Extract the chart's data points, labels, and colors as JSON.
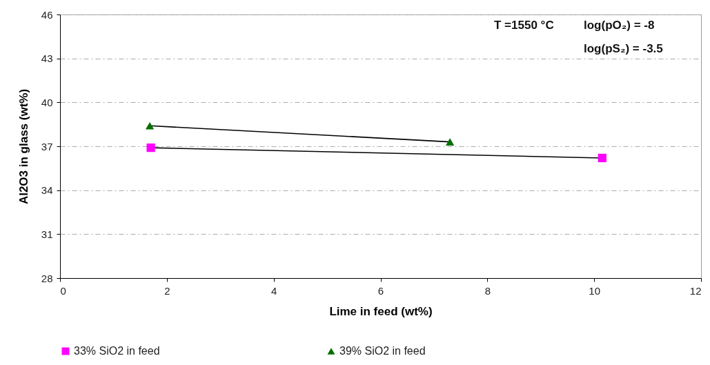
{
  "chart_data": {
    "type": "scatter",
    "xlabel": "Lime in feed (wt%)",
    "ylabel": "Al2O3 in glass (wt%)",
    "xlim": [
      0,
      12
    ],
    "xticks": [
      0,
      2,
      4,
      6,
      8,
      10,
      12
    ],
    "ylim": [
      28,
      46
    ],
    "yticks": [
      28,
      31,
      34,
      37,
      40,
      43,
      46
    ],
    "grid": "y",
    "legend": "bottom",
    "annotations": [
      "T =1550 °C",
      "log(pO₂) = -8",
      "log(pS₂) = -3.5"
    ],
    "series": [
      {
        "type": "line",
        "color": "#000000",
        "x": [
          1.7,
          10.15
        ],
        "values": [
          36.9,
          36.2
        ]
      },
      {
        "type": "line",
        "color": "#000000",
        "x": [
          1.68,
          7.3
        ],
        "values": [
          38.4,
          37.3
        ]
      },
      {
        "name": "33% SiO2 in feed",
        "color": "#ff00ff",
        "marker": "square",
        "x": [
          1.7,
          10.15
        ],
        "values": [
          36.9,
          36.2
        ]
      },
      {
        "name": "39% SiO2 in feed",
        "color": "#007000",
        "marker": "triangle",
        "x": [
          1.68,
          7.3
        ],
        "values": [
          38.4,
          37.3
        ]
      }
    ]
  }
}
